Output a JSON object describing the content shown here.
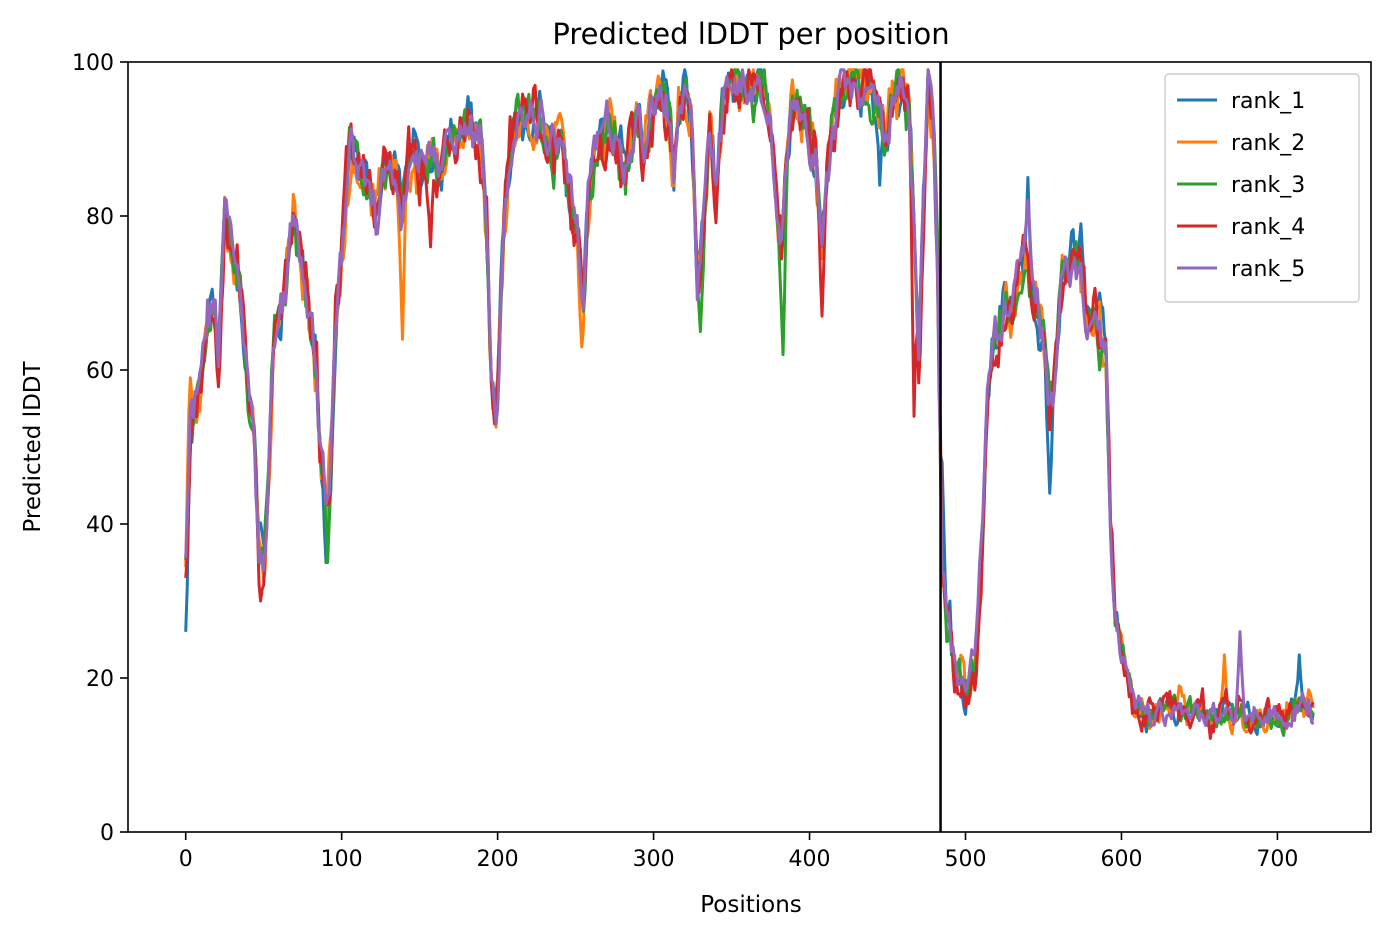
{
  "chart_data": {
    "type": "line",
    "title": "Predicted lDDT per position",
    "xlabel": "Positions",
    "ylabel": "Predicted lDDT",
    "xlim": [
      -37,
      760
    ],
    "ylim": [
      0,
      100
    ],
    "xticks": [
      0,
      100,
      200,
      300,
      400,
      500,
      600,
      700
    ],
    "yticks": [
      0,
      20,
      40,
      60,
      80,
      100
    ],
    "grid": false,
    "legend": "top-right",
    "vline": 484,
    "base_profile": [
      [
        0,
        36
      ],
      [
        3,
        53
      ],
      [
        6,
        56
      ],
      [
        10,
        60
      ],
      [
        14,
        66
      ],
      [
        18,
        70
      ],
      [
        21,
        62
      ],
      [
        25,
        82
      ],
      [
        28,
        78
      ],
      [
        32,
        76
      ],
      [
        36,
        68
      ],
      [
        40,
        58
      ],
      [
        44,
        52
      ],
      [
        47,
        38
      ],
      [
        50,
        35
      ],
      [
        53,
        45
      ],
      [
        56,
        62
      ],
      [
        60,
        67
      ],
      [
        63,
        70
      ],
      [
        66,
        74
      ],
      [
        69,
        80
      ],
      [
        72,
        77
      ],
      [
        76,
        72
      ],
      [
        80,
        66
      ],
      [
        84,
        58
      ],
      [
        87,
        48
      ],
      [
        90,
        43
      ],
      [
        93,
        48
      ],
      [
        96,
        65
      ],
      [
        100,
        75
      ],
      [
        103,
        84
      ],
      [
        106,
        89
      ],
      [
        110,
        87
      ],
      [
        114,
        85
      ],
      [
        118,
        83
      ],
      [
        122,
        80
      ],
      [
        126,
        84
      ],
      [
        130,
        86
      ],
      [
        134,
        86
      ],
      [
        138,
        80
      ],
      [
        142,
        86
      ],
      [
        146,
        88
      ],
      [
        150,
        86
      ],
      [
        154,
        85
      ],
      [
        158,
        88
      ],
      [
        162,
        86
      ],
      [
        166,
        89
      ],
      [
        170,
        90
      ],
      [
        174,
        91
      ],
      [
        178,
        91
      ],
      [
        182,
        91
      ],
      [
        186,
        90
      ],
      [
        190,
        88
      ],
      [
        193,
        78
      ],
      [
        196,
        58
      ],
      [
        199,
        54
      ],
      [
        202,
        68
      ],
      [
        205,
        82
      ],
      [
        208,
        88
      ],
      [
        212,
        92
      ],
      [
        216,
        93
      ],
      [
        220,
        93
      ],
      [
        224,
        93
      ],
      [
        228,
        92
      ],
      [
        232,
        90
      ],
      [
        236,
        88
      ],
      [
        240,
        90
      ],
      [
        244,
        85
      ],
      [
        248,
        80
      ],
      [
        252,
        76
      ],
      [
        255,
        70
      ],
      [
        258,
        82
      ],
      [
        262,
        88
      ],
      [
        266,
        90
      ],
      [
        270,
        92
      ],
      [
        274,
        90
      ],
      [
        278,
        88
      ],
      [
        282,
        86
      ],
      [
        286,
        90
      ],
      [
        290,
        92
      ],
      [
        294,
        88
      ],
      [
        298,
        93
      ],
      [
        302,
        95
      ],
      [
        306,
        96
      ],
      [
        310,
        93
      ],
      [
        313,
        84
      ],
      [
        316,
        93
      ],
      [
        320,
        96
      ],
      [
        324,
        92
      ],
      [
        328,
        72
      ],
      [
        332,
        78
      ],
      [
        336,
        92
      ],
      [
        340,
        82
      ],
      [
        344,
        94
      ],
      [
        348,
        96
      ],
      [
        352,
        97
      ],
      [
        356,
        95
      ],
      [
        360,
        97
      ],
      [
        364,
        96
      ],
      [
        368,
        98
      ],
      [
        372,
        96
      ],
      [
        376,
        90
      ],
      [
        379,
        80
      ],
      [
        382,
        76
      ],
      [
        385,
        86
      ],
      [
        388,
        92
      ],
      [
        392,
        95
      ],
      [
        396,
        93
      ],
      [
        400,
        90
      ],
      [
        404,
        88
      ],
      [
        408,
        76
      ],
      [
        412,
        86
      ],
      [
        416,
        92
      ],
      [
        420,
        96
      ],
      [
        424,
        97
      ],
      [
        428,
        98
      ],
      [
        432,
        96
      ],
      [
        436,
        97
      ],
      [
        440,
        96
      ],
      [
        444,
        94
      ],
      [
        448,
        90
      ],
      [
        452,
        94
      ],
      [
        456,
        96
      ],
      [
        460,
        96
      ],
      [
        464,
        94
      ],
      [
        467,
        78
      ],
      [
        470,
        60
      ],
      [
        473,
        80
      ],
      [
        476,
        97
      ],
      [
        479,
        93
      ],
      [
        482,
        75
      ],
      [
        485,
        35
      ],
      [
        488,
        28
      ],
      [
        491,
        24
      ],
      [
        494,
        20
      ],
      [
        498,
        19
      ],
      [
        502,
        19
      ],
      [
        506,
        21
      ],
      [
        510,
        35
      ],
      [
        514,
        56
      ],
      [
        518,
        63
      ],
      [
        522,
        66
      ],
      [
        526,
        68
      ],
      [
        530,
        68
      ],
      [
        534,
        72
      ],
      [
        538,
        76
      ],
      [
        542,
        72
      ],
      [
        546,
        68
      ],
      [
        550,
        64
      ],
      [
        554,
        55
      ],
      [
        558,
        62
      ],
      [
        562,
        72
      ],
      [
        566,
        74
      ],
      [
        570,
        76
      ],
      [
        574,
        72
      ],
      [
        578,
        68
      ],
      [
        582,
        66
      ],
      [
        586,
        66
      ],
      [
        590,
        62
      ],
      [
        593,
        40
      ],
      [
        596,
        28
      ],
      [
        600,
        24
      ],
      [
        604,
        21
      ],
      [
        608,
        17
      ],
      [
        612,
        16
      ],
      [
        616,
        15
      ],
      [
        620,
        15
      ],
      [
        624,
        16
      ],
      [
        628,
        16
      ],
      [
        632,
        16
      ],
      [
        636,
        16
      ],
      [
        640,
        16
      ],
      [
        644,
        16
      ],
      [
        648,
        16
      ],
      [
        652,
        16
      ],
      [
        656,
        15
      ],
      [
        660,
        15
      ],
      [
        664,
        15
      ],
      [
        668,
        16
      ],
      [
        672,
        15
      ],
      [
        676,
        15
      ],
      [
        680,
        15
      ],
      [
        684,
        15
      ],
      [
        688,
        15
      ],
      [
        692,
        15
      ],
      [
        696,
        15
      ],
      [
        700,
        15
      ],
      [
        704,
        15
      ],
      [
        708,
        16
      ],
      [
        712,
        16
      ],
      [
        716,
        17
      ],
      [
        720,
        17
      ],
      [
        723,
        16
      ]
    ],
    "series": [
      {
        "name": "rank_1",
        "color": "#1f77b4",
        "amp": 2.2,
        "seed": 11,
        "overrides": [
          [
            0,
            26
          ],
          [
            90,
            35
          ],
          [
            540,
            85
          ],
          [
            554,
            44
          ],
          [
            445,
            84
          ],
          [
            485,
            48
          ],
          [
            714,
            23
          ],
          [
            574,
            79
          ]
        ]
      },
      {
        "name": "rank_2",
        "color": "#ff7f0e",
        "amp": 2.4,
        "seed": 23,
        "overrides": [
          [
            3,
            59
          ],
          [
            139,
            64
          ],
          [
            254,
            63
          ],
          [
            666,
            23
          ],
          [
            680,
            13
          ],
          [
            692,
            13
          ],
          [
            700,
            14
          ]
        ]
      },
      {
        "name": "rank_3",
        "color": "#2ca02c",
        "amp": 2.1,
        "seed": 37,
        "overrides": [
          [
            91,
            35
          ],
          [
            330,
            65
          ],
          [
            383,
            62
          ],
          [
            536,
            70
          ],
          [
            586,
            60
          ]
        ]
      },
      {
        "name": "rank_4",
        "color": "#d62728",
        "amp": 2.6,
        "seed": 53,
        "overrides": [
          [
            0,
            33
          ],
          [
            48,
            30
          ],
          [
            157,
            76
          ],
          [
            198,
            53
          ],
          [
            408,
            67
          ],
          [
            467,
            54
          ],
          [
            672,
            14
          ]
        ]
      },
      {
        "name": "rank_5",
        "color": "#9467bd",
        "amp": 2.0,
        "seed": 71,
        "overrides": [
          [
            50,
            34
          ],
          [
            199,
            53
          ],
          [
            540,
            82
          ],
          [
            676,
            26
          ],
          [
            723,
            14
          ]
        ]
      }
    ]
  }
}
